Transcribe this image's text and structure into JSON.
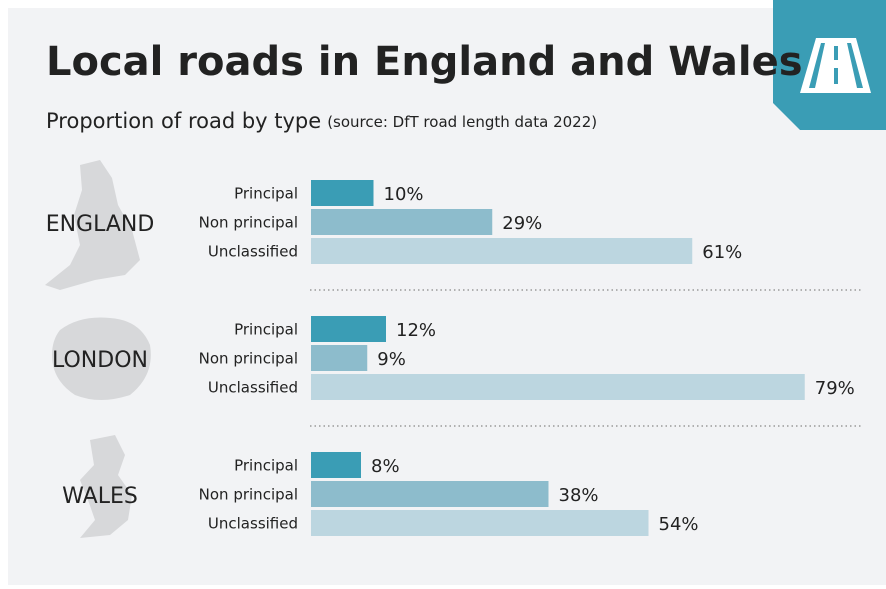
{
  "title": "Local roads in England and Wales",
  "subtitle": "Proportion of road by type",
  "source": "(source: DfT road length data 2022)",
  "chart_data": [
    {
      "type": "bar",
      "title": "ENGLAND",
      "categories": [
        "Principal",
        "Non principal",
        "Unclassified"
      ],
      "values": [
        10,
        29,
        61
      ],
      "value_labels": [
        "10%",
        "29%",
        "61%"
      ],
      "colors": [
        "#3a9db5",
        "#8dbccc",
        "#bcd6e0"
      ]
    },
    {
      "type": "bar",
      "title": "LONDON",
      "categories": [
        "Principal",
        "Non principal",
        "Unclassified"
      ],
      "values": [
        12,
        9,
        79
      ],
      "value_labels": [
        "12%",
        "9%",
        "79%"
      ],
      "colors": [
        "#3a9db5",
        "#8dbccc",
        "#bcd6e0"
      ]
    },
    {
      "type": "bar",
      "title": "WALES",
      "categories": [
        "Principal",
        "Non principal",
        "Unclassified"
      ],
      "values": [
        8,
        38,
        54
      ],
      "value_labels": [
        "8%",
        "38%",
        "54%"
      ],
      "colors": [
        "#3a9db5",
        "#8dbccc",
        "#bcd6e0"
      ]
    }
  ]
}
